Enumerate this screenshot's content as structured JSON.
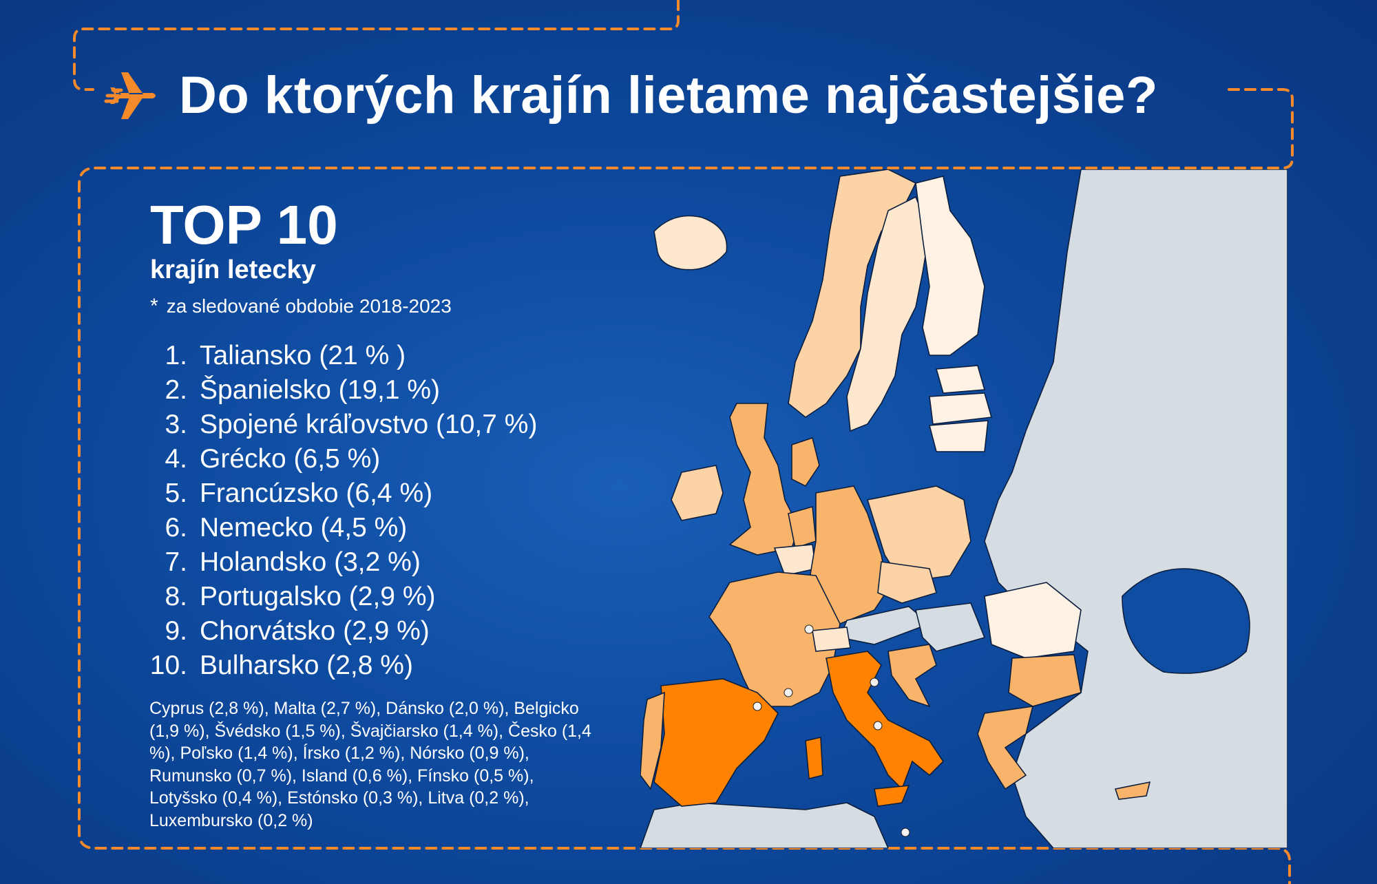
{
  "title": "Do ktorých krajín lietame najčastejšie?",
  "header": {
    "heading": "TOP 10",
    "subheading": "krajín letecky",
    "footnote_marker": "*",
    "footnote": "za sledované obdobie 2018-2023"
  },
  "ranking": [
    {
      "rank": "1.",
      "label": "Taliansko (21 % )"
    },
    {
      "rank": "2.",
      "label": "Španielsko (19,1 %)"
    },
    {
      "rank": "3.",
      "label": "Spojené kráľovstvo (10,7 %)"
    },
    {
      "rank": "4.",
      "label": "Grécko (6,5 %)"
    },
    {
      "rank": "5.",
      "label": "Francúzsko  (6,4 %)"
    },
    {
      "rank": "6.",
      "label": "Nemecko (4,5 %)"
    },
    {
      "rank": "7.",
      "label": "Holandsko (3,2 %)"
    },
    {
      "rank": "8.",
      "label": "Portugalsko (2,9 %)"
    },
    {
      "rank": "9.",
      "label": "Chorvátsko (2,9 %)"
    },
    {
      "rank": "10.",
      "label": "Bulharsko (2,8 %)"
    }
  ],
  "others": "Cyprus (2,8 %), Malta (2,7 %), Dánsko (2,0 %), Belgicko (1,9 %), Švédsko (1,5 %), Švajčiarsko (1,4 %), Česko (1,4 %), Poľsko (1,4 %), Írsko (1,2 %), Nórsko (0,9 %), Rumunsko (0,7 %), Island (0,6 %), Fínsko (0,5 %), Lotyšsko (0,4 %), Estónsko (0,3 %), Litva (0,2 %), Luxembursko (0,2 %)",
  "icons": {
    "plane": "plane-icon"
  },
  "colors": {
    "background": "#0f4da3",
    "accent_orange": "#f58a2a",
    "shade_top": "#ff8200",
    "shade_high": "#f8b46a",
    "shade_mid": "#fbd3a6",
    "shade_low": "#fde7cf",
    "shade_min": "#fff1e3",
    "shade_none": "#d6dde2"
  }
}
